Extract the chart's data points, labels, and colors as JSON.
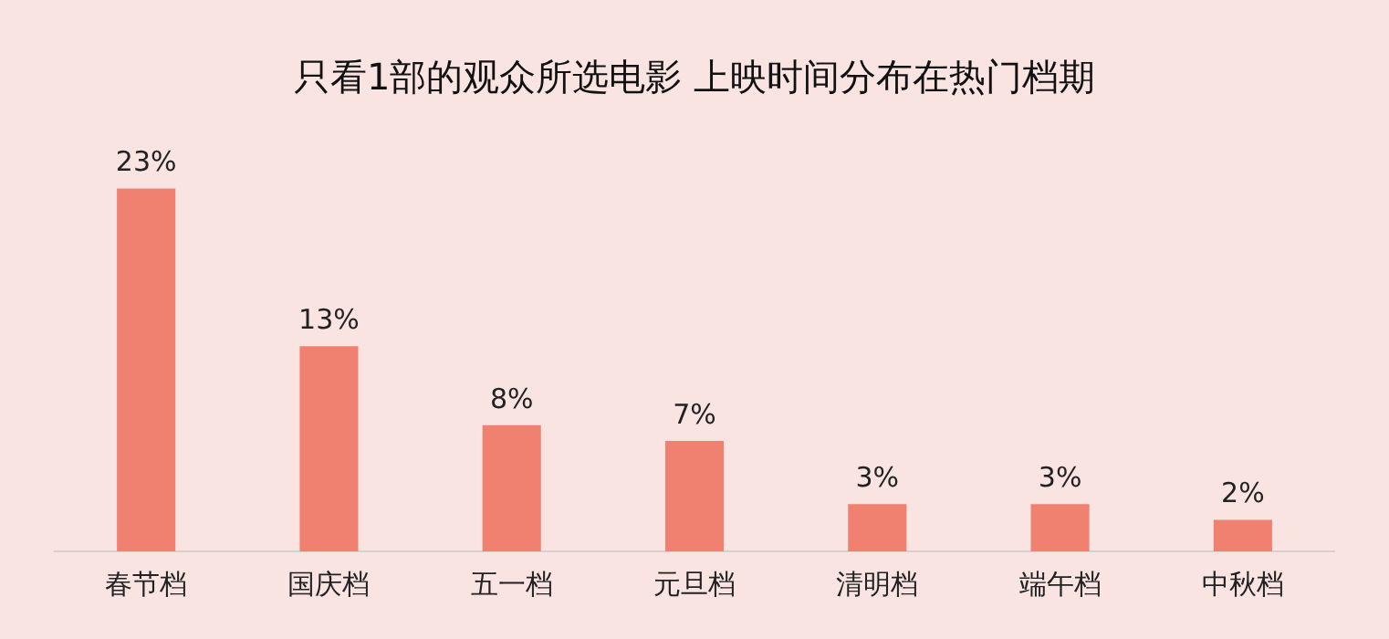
{
  "chart_data": {
    "type": "bar",
    "title": "只看1部的观众所选电影 上映时间分布在热门档期",
    "categories": [
      "春节档",
      "国庆档",
      "五一档",
      "元旦档",
      "清明档",
      "端午档",
      "中秋档"
    ],
    "values": [
      23,
      13,
      8,
      7,
      3,
      3,
      2
    ],
    "value_labels": [
      "23%",
      "13%",
      "8%",
      "7%",
      "3%",
      "3%",
      "2%"
    ],
    "color": "#f08070",
    "grid": false,
    "legend": false
  }
}
